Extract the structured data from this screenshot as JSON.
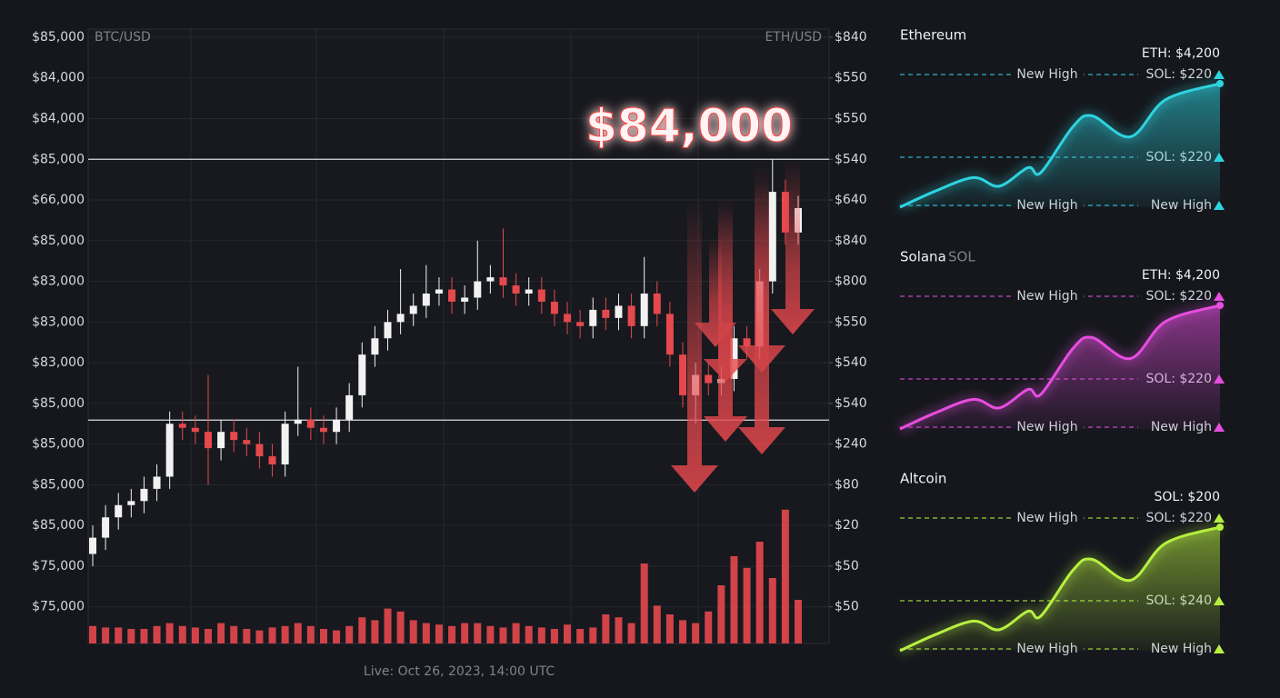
{
  "chart_data": [
    {
      "type": "candlestick",
      "left_label": "BTC/USD",
      "right_label": "ETH/USD",
      "annotation": "$84,000",
      "footer": "Live: Oct 26, 2023, 14:00 UTC",
      "ylim": [
        -0.9,
        14.2
      ],
      "yticks": [
        {
          "value": 14,
          "label": "$85,000"
        },
        {
          "value": 13,
          "label": "$84,000"
        },
        {
          "value": 12,
          "label": "$84,000"
        },
        {
          "value": 11,
          "label": "$85,000"
        },
        {
          "value": 10,
          "label": "$66,000"
        },
        {
          "value": 9,
          "label": "$85,000"
        },
        {
          "value": 8,
          "label": "$83,000"
        },
        {
          "value": 7,
          "label": "$83,000"
        },
        {
          "value": 6,
          "label": "$83,000"
        },
        {
          "value": 5,
          "label": "$85,000"
        },
        {
          "value": 4,
          "label": "$85,000"
        },
        {
          "value": 3,
          "label": "$85,000"
        },
        {
          "value": 2,
          "label": "$85,000"
        },
        {
          "value": 1,
          "label": "$75,000"
        },
        {
          "value": 0,
          "label": "$75,000"
        }
      ],
      "y2lim": [
        -0.9,
        14.2
      ],
      "y2ticks": [
        {
          "value": 14,
          "label": "$840"
        },
        {
          "value": 13,
          "label": "$550"
        },
        {
          "value": 12,
          "label": "$550"
        },
        {
          "value": 11,
          "label": "$540"
        },
        {
          "value": 10,
          "label": "$640"
        },
        {
          "value": 9,
          "label": "$840"
        },
        {
          "value": 8,
          "label": "$800"
        },
        {
          "value": 7,
          "label": "$550"
        },
        {
          "value": 6,
          "label": "$540"
        },
        {
          "value": 5,
          "label": "$540"
        },
        {
          "value": 4,
          "label": "$240"
        },
        {
          "value": 3,
          "label": "$80"
        },
        {
          "value": 2,
          "label": "$20"
        },
        {
          "value": 1,
          "label": "$50"
        },
        {
          "value": 0,
          "label": "$50"
        }
      ],
      "grid": true,
      "reference_lines": [
        11,
        4.59
      ],
      "color_up": "#f2f2f2",
      "color_down": "#e5484d",
      "volume_lim": [
        0,
        100
      ],
      "open": [
        1.3,
        1.7,
        2.2,
        2.5,
        2.6,
        2.9,
        3.2,
        4.5,
        4.4,
        4.3,
        3.9,
        4.3,
        4.1,
        4.0,
        3.7,
        3.5,
        4.5,
        4.6,
        4.4,
        4.3,
        4.6,
        5.2,
        6.2,
        6.6,
        7.0,
        7.2,
        7.4,
        7.7,
        7.8,
        7.5,
        7.6,
        8.0,
        8.1,
        7.9,
        7.7,
        7.8,
        7.5,
        7.2,
        7.0,
        6.9,
        7.3,
        7.1,
        7.4,
        6.9,
        7.7,
        7.2,
        6.2,
        5.2,
        5.7,
        5.5,
        5.6,
        6.6,
        6.4,
        8.0,
        10.2,
        9.2
      ],
      "high": [
        2.0,
        2.5,
        2.8,
        2.9,
        3.2,
        3.5,
        4.8,
        4.8,
        4.7,
        5.7,
        4.6,
        4.6,
        4.4,
        4.3,
        4.0,
        4.8,
        5.9,
        4.9,
        4.7,
        4.9,
        5.5,
        6.5,
        6.9,
        7.3,
        8.3,
        7.7,
        8.4,
        8.1,
        8.1,
        7.9,
        9.0,
        8.4,
        9.3,
        8.2,
        8.1,
        8.1,
        7.8,
        7.5,
        7.3,
        7.6,
        7.6,
        7.7,
        7.7,
        8.6,
        8.0,
        7.5,
        6.5,
        6.0,
        6.0,
        5.9,
        6.9,
        6.9,
        8.3,
        11.0,
        10.5,
        10.1
      ],
      "low": [
        1.0,
        1.4,
        1.9,
        2.2,
        2.3,
        2.6,
        2.9,
        4.1,
        4.0,
        3.0,
        3.6,
        3.8,
        3.7,
        3.4,
        3.2,
        3.2,
        4.2,
        4.1,
        4.0,
        4.0,
        4.3,
        4.9,
        5.9,
        6.3,
        6.7,
        6.9,
        7.1,
        7.4,
        7.2,
        7.2,
        7.3,
        7.7,
        7.6,
        7.4,
        7.4,
        7.2,
        6.9,
        6.7,
        6.6,
        6.6,
        6.8,
        6.8,
        6.6,
        6.6,
        6.9,
        5.9,
        4.9,
        4.5,
        5.2,
        5.2,
        5.3,
        6.1,
        6.1,
        7.7,
        8.9,
        8.9
      ],
      "close": [
        1.7,
        2.2,
        2.5,
        2.6,
        2.9,
        3.2,
        4.5,
        4.4,
        4.3,
        3.9,
        4.3,
        4.1,
        4.0,
        3.7,
        3.5,
        4.5,
        4.6,
        4.4,
        4.3,
        4.6,
        5.2,
        6.2,
        6.6,
        7.0,
        7.2,
        7.4,
        7.7,
        7.8,
        7.5,
        7.6,
        8.0,
        8.1,
        7.9,
        7.7,
        7.8,
        7.5,
        7.2,
        7.0,
        6.9,
        7.3,
        7.1,
        7.4,
        6.9,
        7.7,
        7.2,
        6.2,
        5.2,
        5.7,
        5.5,
        5.6,
        6.6,
        6.4,
        8.0,
        10.2,
        9.2,
        9.8
      ],
      "volume": [
        12,
        11,
        11,
        10,
        10,
        12,
        14,
        12,
        11,
        10,
        14,
        12,
        10,
        9,
        11,
        12,
        14,
        12,
        10,
        9,
        12,
        18,
        16,
        24,
        22,
        16,
        14,
        13,
        12,
        14,
        14,
        12,
        11,
        14,
        12,
        11,
        10,
        13,
        10,
        11,
        20,
        18,
        14,
        55,
        26,
        20,
        16,
        14,
        22,
        40,
        60,
        52,
        70,
        45,
        92,
        30
      ]
    },
    {
      "type": "area",
      "title": "Ethereum",
      "label": "ETH: $4,200",
      "color": "#2fd3e0",
      "x": [
        0,
        11,
        23,
        31,
        40,
        44,
        54,
        60,
        72,
        83,
        100
      ],
      "values": [
        0,
        13,
        24,
        17,
        32,
        28,
        65,
        74,
        57,
        87,
        100
      ],
      "guides": [
        {
          "label": "New High",
          "tag": "SOL: $220"
        },
        {
          "tag": "SOL: $220"
        },
        {
          "label": "New High",
          "tag": "New High"
        }
      ]
    },
    {
      "type": "area",
      "title": "Solana",
      "subtitle": "SOL",
      "label": "ETH: $4,200",
      "color": "#e64ee0",
      "x": [
        0,
        11,
        23,
        31,
        40,
        44,
        54,
        60,
        72,
        83,
        100
      ],
      "values": [
        0,
        13,
        24,
        17,
        32,
        28,
        65,
        74,
        57,
        87,
        100
      ],
      "guides": [
        {
          "label": "New High",
          "tag": "SOL: $220"
        },
        {
          "tag": "SOL: $220"
        },
        {
          "label": "New High",
          "tag": "New High"
        }
      ]
    },
    {
      "type": "area",
      "title": "Altcoin",
      "label": "SOL: $200",
      "color": "#b8f040",
      "x": [
        0,
        11,
        23,
        31,
        40,
        44,
        54,
        60,
        72,
        83,
        100
      ],
      "values": [
        0,
        13,
        24,
        17,
        32,
        28,
        65,
        74,
        57,
        87,
        100
      ],
      "guides": [
        {
          "label": "New High",
          "tag": "SOL: $220"
        },
        {
          "tag": "SOL: $240"
        },
        {
          "label": "New High",
          "tag": "New High"
        }
      ]
    }
  ]
}
